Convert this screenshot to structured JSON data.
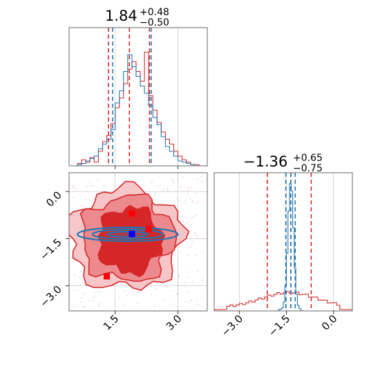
{
  "chart_data": [
    {
      "type": "histogram",
      "panel": "param1-marginal",
      "title": {
        "median": "1.84",
        "plus": "+0.48",
        "minus": "−0.50"
      },
      "xlim": [
        0.4,
        3.7
      ],
      "x_ticks": [
        1.5,
        3.0
      ],
      "grid": true,
      "series": [
        {
          "color": "#d62728",
          "vlines": [
            1.34,
            1.84,
            2.32
          ],
          "bins": [
            0.6,
            0.7,
            0.8,
            0.9,
            1.0,
            1.1,
            1.2,
            1.3,
            1.4,
            1.5,
            1.6,
            1.7,
            1.8,
            1.9,
            2.0,
            2.1,
            2.2,
            2.3,
            2.4,
            2.5,
            2.6,
            2.7,
            2.8,
            2.9,
            3.0,
            3.1,
            3.2,
            3.3,
            3.4,
            3.5,
            3.6
          ],
          "counts": [
            0.02,
            0.05,
            0.03,
            0.07,
            0.03,
            0.12,
            0.2,
            0.25,
            0.35,
            0.48,
            0.56,
            0.68,
            0.8,
            0.86,
            0.78,
            0.7,
            0.94,
            0.58,
            0.46,
            0.36,
            0.28,
            0.22,
            0.18,
            0.12,
            0.08,
            0.05,
            0.03,
            0.01,
            0.01,
            0.0
          ]
        },
        {
          "color": "#1f77b4",
          "vlines": [
            1.44,
            2.36
          ],
          "bins": [
            0.6,
            0.7,
            0.8,
            0.9,
            1.0,
            1.1,
            1.2,
            1.3,
            1.4,
            1.5,
            1.6,
            1.7,
            1.8,
            1.9,
            2.0,
            2.1,
            2.2,
            2.3,
            2.4,
            2.5,
            2.6,
            2.7,
            2.8,
            2.9,
            3.0,
            3.1,
            3.2,
            3.3,
            3.4,
            3.5,
            3.6
          ],
          "counts": [
            0.01,
            0.02,
            0.04,
            0.06,
            0.08,
            0.14,
            0.18,
            0.22,
            0.3,
            0.52,
            0.62,
            0.78,
            0.92,
            0.82,
            0.74,
            0.66,
            0.6,
            0.5,
            0.4,
            0.34,
            0.24,
            0.16,
            0.12,
            0.08,
            0.04,
            0.03,
            0.02,
            0.01,
            0.0,
            0.0
          ]
        }
      ]
    },
    {
      "type": "scatter",
      "panel": "joint",
      "xlim": [
        0.4,
        3.7
      ],
      "ylim": [
        -3.8,
        0.6
      ],
      "x_ticks": [
        1.5,
        3.0
      ],
      "y_ticks": [
        0.0,
        -1.5,
        -3.0
      ],
      "grid": true,
      "red_contour_levels": [
        {
          "fill": "#f6c6c9",
          "center": [
            1.75,
            -1.5
          ],
          "radius": [
            1.35,
            1.6
          ]
        },
        {
          "fill": "#ec8a8e",
          "center": [
            1.8,
            -1.5
          ],
          "radius": [
            1.1,
            1.35
          ]
        },
        {
          "fill": "#d62728",
          "center": [
            1.85,
            -1.55
          ],
          "radius": [
            0.75,
            1.05
          ]
        }
      ],
      "blue_contour": {
        "center": [
          1.8,
          -1.36
        ],
        "radius": [
          1.2,
          0.22
        ]
      },
      "markers": [
        {
          "x": 1.9,
          "y": -0.7,
          "color": "#ff0000"
        },
        {
          "x": 2.3,
          "y": -1.2,
          "color": "#ff0000"
        },
        {
          "x": 1.3,
          "y": -2.7,
          "color": "#ff0000"
        },
        {
          "x": 1.9,
          "y": -1.35,
          "color": "#0000ff"
        }
      ]
    },
    {
      "type": "histogram",
      "panel": "param2-marginal",
      "title": {
        "median": "−1.36",
        "plus": "+0.65",
        "minus": "−0.75"
      },
      "xlim": [
        -3.8,
        0.6
      ],
      "x_ticks": [
        -3.0,
        -1.5,
        0.0
      ],
      "grid": true,
      "series": [
        {
          "color": "#d62728",
          "vlines": [
            -2.11,
            -1.36,
            -0.71
          ]
        },
        {
          "color": "#1f77b4",
          "vlines": [
            -1.52,
            -1.36,
            -1.22
          ]
        }
      ]
    }
  ],
  "tick_text": {
    "top_x": [
      "1.5",
      "3.0"
    ],
    "joint_x": [
      "1.5",
      "3.0"
    ],
    "joint_y": [
      "0.0",
      "−1.5",
      "−3.0"
    ],
    "right_x": [
      "−3.0",
      "−1.5",
      "0.0"
    ]
  }
}
